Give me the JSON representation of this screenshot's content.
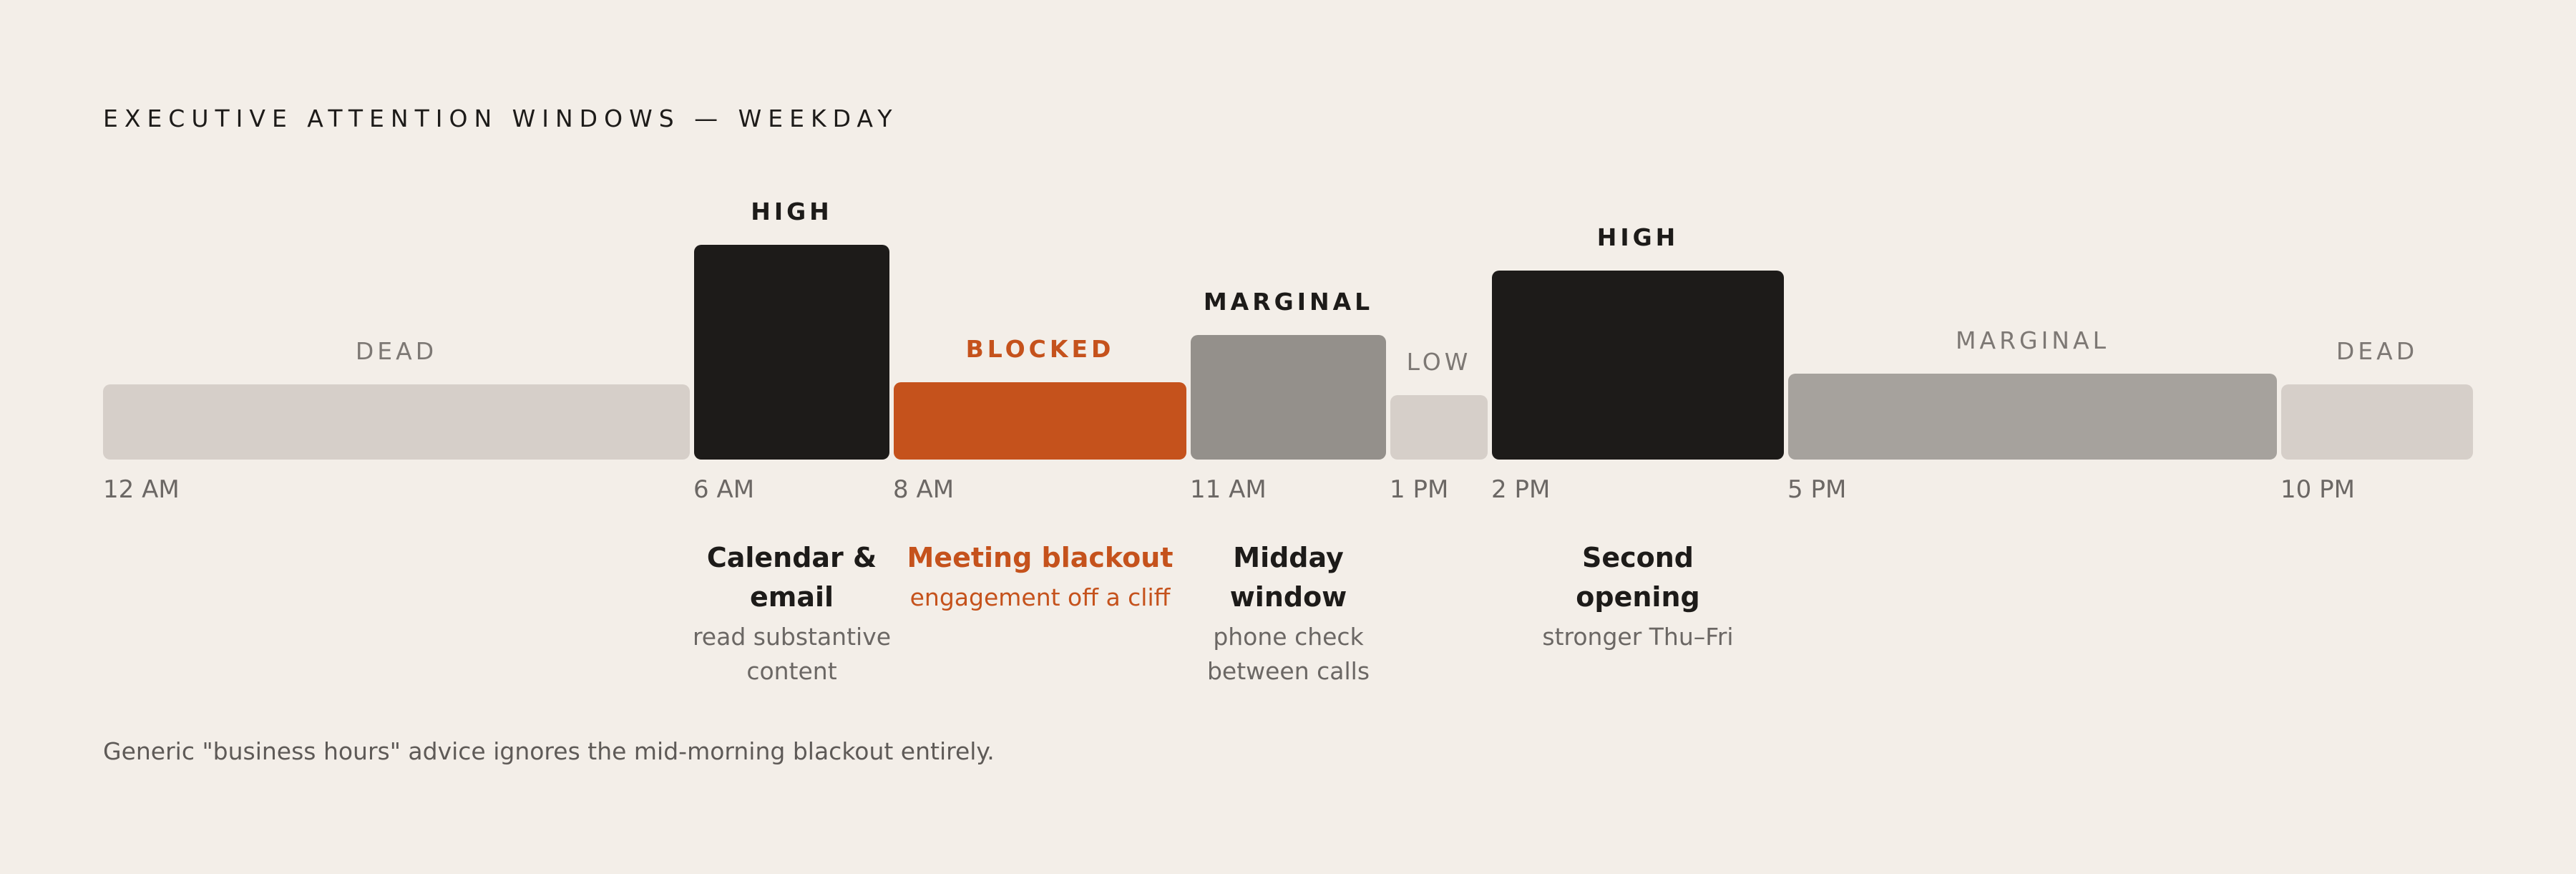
{
  "title": "EXECUTIVE ATTENTION WINDOWS — WEEKDAY",
  "caption": "Generic \"business hours\" advice ignores the mid-morning blackout entirely.",
  "colors": {
    "background": "#f3eee8",
    "dead": "#d6cfc9",
    "high": "#1d1b19",
    "blocked": "#c5521c",
    "marginal_dark": "#94908b",
    "marginal_light": "#a6a29d",
    "low": "#d6cfc9",
    "muted_text": "#6b6764",
    "dark_text": "#1d1b19"
  },
  "chart_data": {
    "type": "bar",
    "title": "EXECUTIVE ATTENTION WINDOWS — WEEKDAY",
    "x_range": [
      0,
      24
    ],
    "tick_labels": [
      "12 AM",
      "6 AM",
      "8 AM",
      "11 AM",
      "1 PM",
      "2 PM",
      "5 PM",
      "10 PM"
    ],
    "tick_hours": [
      0,
      6,
      8,
      11,
      13,
      14,
      17,
      22
    ],
    "y_range": [
      0,
      1
    ],
    "segments": [
      {
        "start": 0,
        "end": 6,
        "label": "DEAD",
        "level": 0.35,
        "color": "#d6cfc9",
        "label_color": "#7d7874",
        "strong": false
      },
      {
        "start": 6,
        "end": 8,
        "label": "HIGH",
        "level": 1.0,
        "color": "#1d1b19",
        "label_color": "#1d1b19",
        "strong": true
      },
      {
        "start": 8,
        "end": 11,
        "label": "BLOCKED",
        "level": 0.36,
        "color": "#c5521c",
        "label_color": "#c5521c",
        "strong": true
      },
      {
        "start": 11,
        "end": 13,
        "label": "MARGINAL",
        "level": 0.58,
        "color": "#94908b",
        "label_color": "#1d1b19",
        "strong": true
      },
      {
        "start": 13,
        "end": 14,
        "label": "LOW",
        "level": 0.3,
        "color": "#d6cfc9",
        "label_color": "#7d7874",
        "strong": false
      },
      {
        "start": 14,
        "end": 17,
        "label": "HIGH",
        "level": 0.88,
        "color": "#1d1b19",
        "label_color": "#1d1b19",
        "strong": true
      },
      {
        "start": 17,
        "end": 22,
        "label": "MARGINAL",
        "level": 0.4,
        "color": "#a6a29d",
        "label_color": "#7d7874",
        "strong": false
      },
      {
        "start": 22,
        "end": 24,
        "label": "DEAD",
        "level": 0.35,
        "color": "#d6cfc9",
        "label_color": "#7d7874",
        "strong": false
      }
    ],
    "annotations": [
      {
        "segment": 1,
        "title": "Calendar & email",
        "subtitle": "read substantive content",
        "title_color": "#1d1b19",
        "sub_color": "#6b6764"
      },
      {
        "segment": 2,
        "title": "Meeting blackout",
        "subtitle": "engagement off a cliff",
        "title_color": "#c5521c",
        "sub_color": "#c5521c"
      },
      {
        "segment": 3,
        "title": "Midday window",
        "subtitle": "phone check between calls",
        "title_color": "#1d1b19",
        "sub_color": "#6b6764"
      },
      {
        "segment": 5,
        "title": "Second opening",
        "subtitle": "stronger Thu–Fri",
        "title_color": "#1d1b19",
        "sub_color": "#6b6764"
      }
    ]
  }
}
